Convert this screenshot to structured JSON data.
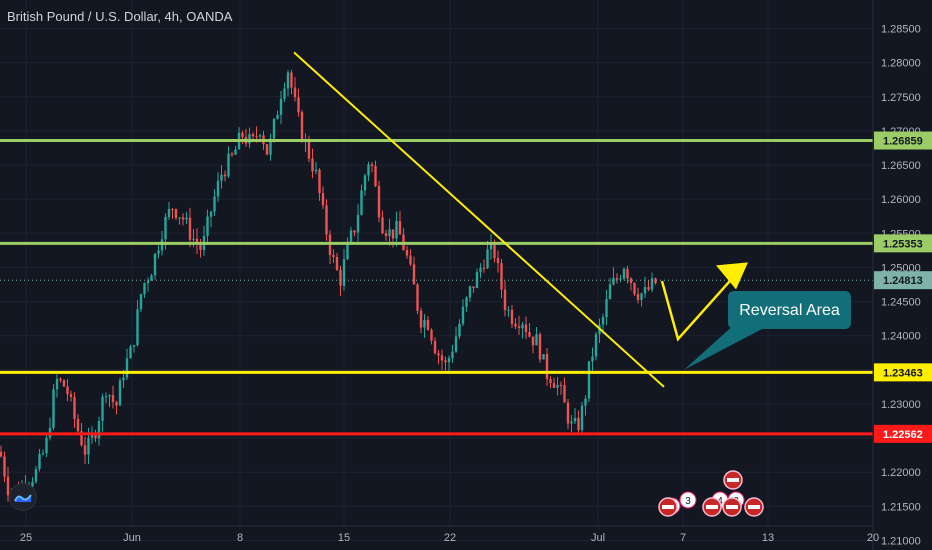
{
  "header": {
    "title": "British Pound / U.S. Dollar, 4h, OANDA"
  },
  "colors": {
    "background": "#131722",
    "grid": "#1e2230",
    "bull": "#26a69a",
    "bear": "#ef5350",
    "green_level": "#9ccc65",
    "yellow": "#ffee00",
    "red_level": "#ff1a1a",
    "callout": "#126f7a",
    "current_price": "#7fb3a7"
  },
  "chart_data": {
    "type": "candlestick",
    "symbol": "British Pound / U.S. Dollar",
    "interval": "4h",
    "source": "OANDA",
    "x_ticks": [
      "25",
      "Jun",
      "8",
      "15",
      "22",
      "Jul",
      "7",
      "13",
      "20"
    ],
    "y_ticks": [
      "1.28500",
      "1.28000",
      "1.27500",
      "1.27000",
      "1.26500",
      "1.26000",
      "1.25500",
      "1.25000",
      "1.24500",
      "1.24000",
      "1.23500",
      "1.23000",
      "1.22500",
      "1.22000",
      "1.21500",
      "1.21000"
    ],
    "ylim": [
      1.2095,
      1.2885
    ],
    "price_path": [
      [
        0,
        1.223
      ],
      [
        8,
        1.2178
      ],
      [
        16,
        1.217
      ],
      [
        26,
        1.2185
      ],
      [
        36,
        1.22
      ],
      [
        46,
        1.2238
      ],
      [
        56,
        1.2335
      ],
      [
        66,
        1.2325
      ],
      [
        76,
        1.227
      ],
      [
        86,
        1.2228
      ],
      [
        96,
        1.2265
      ],
      [
        106,
        1.2325
      ],
      [
        116,
        1.2295
      ],
      [
        124,
        1.2352
      ],
      [
        132,
        1.238
      ],
      [
        142,
        1.247
      ],
      [
        152,
        1.25
      ],
      [
        162,
        1.2555
      ],
      [
        172,
        1.259
      ],
      [
        182,
        1.2575
      ],
      [
        192,
        1.2545
      ],
      [
        202,
        1.2525
      ],
      [
        212,
        1.259
      ],
      [
        222,
        1.264
      ],
      [
        232,
        1.266
      ],
      [
        242,
        1.2695
      ],
      [
        252,
        1.268
      ],
      [
        260,
        1.2705
      ],
      [
        268,
        1.2665
      ],
      [
        276,
        1.272
      ],
      [
        282,
        1.2765
      ],
      [
        288,
        1.279
      ],
      [
        294,
        1.2745
      ],
      [
        300,
        1.2705
      ],
      [
        308,
        1.267
      ],
      [
        316,
        1.2635
      ],
      [
        324,
        1.257
      ],
      [
        332,
        1.2515
      ],
      [
        340,
        1.248
      ],
      [
        348,
        1.253
      ],
      [
        356,
        1.2565
      ],
      [
        364,
        1.263
      ],
      [
        370,
        1.2665
      ],
      [
        376,
        1.261
      ],
      [
        382,
        1.2565
      ],
      [
        390,
        1.255
      ],
      [
        398,
        1.2555
      ],
      [
        406,
        1.252
      ],
      [
        414,
        1.247
      ],
      [
        420,
        1.2425
      ],
      [
        428,
        1.242
      ],
      [
        436,
        1.238
      ],
      [
        446,
        1.2355
      ],
      [
        454,
        1.239
      ],
      [
        462,
        1.243
      ],
      [
        470,
        1.2465
      ],
      [
        478,
        1.249
      ],
      [
        486,
        1.252
      ],
      [
        494,
        1.2525
      ],
      [
        500,
        1.248
      ],
      [
        506,
        1.244
      ],
      [
        514,
        1.2425
      ],
      [
        522,
        1.2425
      ],
      [
        530,
        1.24
      ],
      [
        538,
        1.239
      ],
      [
        546,
        1.2345
      ],
      [
        552,
        1.234
      ],
      [
        560,
        1.232
      ],
      [
        566,
        1.229
      ],
      [
        572,
        1.2265
      ],
      [
        578,
        1.2268
      ],
      [
        584,
        1.23
      ],
      [
        590,
        1.236
      ],
      [
        596,
        1.2395
      ],
      [
        604,
        1.243
      ],
      [
        610,
        1.247
      ],
      [
        618,
        1.2485
      ],
      [
        624,
        1.2505
      ],
      [
        630,
        1.2485
      ],
      [
        636,
        1.2465
      ],
      [
        644,
        1.246
      ],
      [
        650,
        1.247
      ],
      [
        656,
        1.2478
      ]
    ],
    "horizontal_levels": [
      {
        "price": 1.26859,
        "label": "1.26859",
        "color": "#9ccc65"
      },
      {
        "price": 1.25353,
        "label": "1.25353",
        "color": "#9ccc65"
      },
      {
        "price": 1.24813,
        "label": "1.24813",
        "color": "#7fb3a7",
        "dotted": true
      },
      {
        "price": 1.23463,
        "label": "1.23463",
        "color": "#ffee00"
      },
      {
        "price": 1.22562,
        "label": "1.22562",
        "color": "#ff1a1a"
      }
    ],
    "trendline": {
      "start": [
        294,
        1.2815
      ],
      "end": [
        664,
        1.2325
      ]
    },
    "projection": [
      [
        662,
        1.248
      ],
      [
        678,
        1.2395
      ],
      [
        742,
        1.25
      ]
    ],
    "annotation": {
      "text": "Reversal Area",
      "pointer": [
        684,
        1.235
      ]
    },
    "event_badges": [
      {
        "text": "3",
        "count": "1"
      },
      {
        "text": "3",
        "count": ""
      },
      {
        "text": "4",
        "count": ""
      },
      {
        "text": "3",
        "count": ""
      }
    ]
  }
}
